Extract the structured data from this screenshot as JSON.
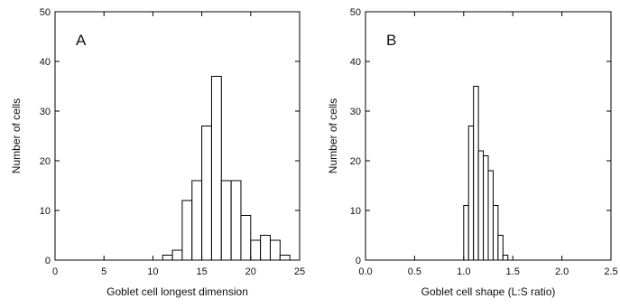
{
  "chart_data": [
    {
      "type": "bar",
      "panel_label": "A",
      "xlabel": "Goblet cell longest dimension",
      "ylabel": "Number of cells",
      "xlim": [
        0,
        25
      ],
      "ylim": [
        0,
        50
      ],
      "xticks": [
        0,
        5,
        10,
        15,
        20,
        25
      ],
      "yticks": [
        0,
        10,
        20,
        30,
        40,
        50
      ],
      "xtick_labels": [
        "0",
        "5",
        "10",
        "15",
        "20",
        "25"
      ],
      "ytick_labels": [
        "0",
        "10",
        "20",
        "30",
        "40",
        "50"
      ],
      "bin_width": 1,
      "bins": [
        {
          "x": 11,
          "value": 1
        },
        {
          "x": 12,
          "value": 2
        },
        {
          "x": 13,
          "value": 12
        },
        {
          "x": 14,
          "value": 16
        },
        {
          "x": 15,
          "value": 27
        },
        {
          "x": 16,
          "value": 37
        },
        {
          "x": 17,
          "value": 16
        },
        {
          "x": 18,
          "value": 16
        },
        {
          "x": 19,
          "value": 9
        },
        {
          "x": 20,
          "value": 4
        },
        {
          "x": 21,
          "value": 5
        },
        {
          "x": 22,
          "value": 4
        },
        {
          "x": 23,
          "value": 1
        }
      ],
      "grid": false
    },
    {
      "type": "bar",
      "panel_label": "B",
      "xlabel": "Goblet cell shape (L:S ratio)",
      "ylabel": "Number of cells",
      "xlim": [
        0,
        2.5
      ],
      "ylim": [
        0,
        50
      ],
      "xticks": [
        0,
        0.5,
        1.0,
        1.5,
        2.0,
        2.5
      ],
      "yticks": [
        0,
        10,
        20,
        30,
        40,
        50
      ],
      "xtick_labels": [
        "0.0",
        "0.5",
        "1.0",
        "1.5",
        "2.0",
        "2.5"
      ],
      "ytick_labels": [
        "0",
        "10",
        "20",
        "30",
        "40",
        "50"
      ],
      "bin_width": 0.05,
      "bins": [
        {
          "x": 1.0,
          "value": 11
        },
        {
          "x": 1.05,
          "value": 27
        },
        {
          "x": 1.1,
          "value": 35
        },
        {
          "x": 1.15,
          "value": 22
        },
        {
          "x": 1.2,
          "value": 21
        },
        {
          "x": 1.25,
          "value": 18
        },
        {
          "x": 1.3,
          "value": 11
        },
        {
          "x": 1.35,
          "value": 5
        },
        {
          "x": 1.4,
          "value": 1
        }
      ],
      "grid": false
    }
  ]
}
